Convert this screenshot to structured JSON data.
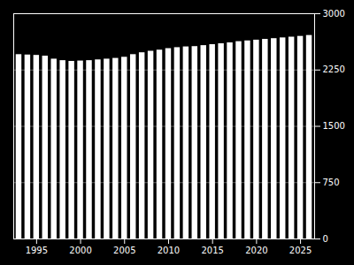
{
  "chart_data": {
    "type": "bar",
    "x": [
      1993,
      1994,
      1995,
      1996,
      1997,
      1998,
      1999,
      2000,
      2001,
      2002,
      2003,
      2004,
      2005,
      2006,
      2007,
      2008,
      2009,
      2010,
      2011,
      2012,
      2013,
      2014,
      2015,
      2016,
      2017,
      2018,
      2019,
      2020,
      2021,
      2022,
      2023,
      2024,
      2025,
      2026
    ],
    "values": [
      2455,
      2450,
      2445,
      2435,
      2395,
      2375,
      2365,
      2370,
      2375,
      2385,
      2395,
      2405,
      2420,
      2455,
      2480,
      2500,
      2515,
      2535,
      2548,
      2558,
      2562,
      2575,
      2588,
      2600,
      2612,
      2628,
      2638,
      2648,
      2658,
      2668,
      2678,
      2688,
      2698,
      2710
    ],
    "color": "#ffffff",
    "xlim": [
      1992.4,
      2026.6
    ],
    "xticks": [
      1995,
      2000,
      2005,
      2010,
      2015,
      2020,
      2025
    ],
    "ylim": [
      0,
      3000
    ],
    "yticks": [
      0,
      750,
      1500,
      2250,
      3000
    ],
    "grid": true
  }
}
